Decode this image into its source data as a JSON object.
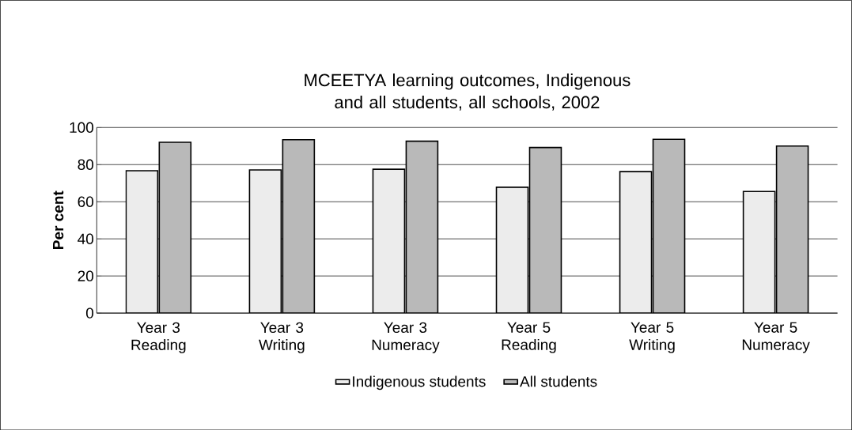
{
  "chart_data": {
    "type": "bar",
    "title": "MCEETYA learning outcomes, Indigenous and all students, all schools, 2002",
    "ylabel": "Per cent",
    "categories": [
      "Year 3 Reading",
      "Year 3 Writing",
      "Year 3 Numeracy",
      "Year 5 Reading",
      "Year 5 Writing",
      "Year 5 Numeracy"
    ],
    "series": [
      {
        "name": "Indigenous students",
        "color": "#ececec",
        "values": [
          76.7,
          77.1,
          77.5,
          67.8,
          76.2,
          65.5
        ]
      },
      {
        "name": "All students",
        "color": "#b9b9b9",
        "values": [
          92.0,
          93.4,
          92.6,
          89.2,
          93.6,
          90.0
        ]
      }
    ],
    "ylim": [
      0,
      100
    ],
    "yticks": [
      0,
      20,
      40,
      60,
      80,
      100
    ],
    "grid": "y",
    "legend": "bottom"
  }
}
